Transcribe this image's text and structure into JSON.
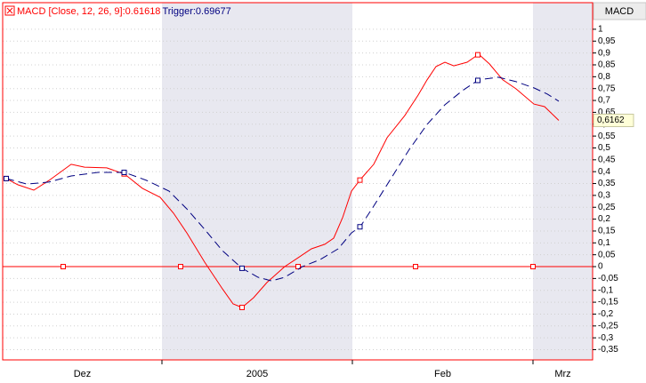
{
  "chart_data": {
    "type": "line",
    "axis_title": "MACD",
    "series": [
      {
        "name": "MACD [Close, 12, 26, 9]:0.61618",
        "color": "#ff0000",
        "dash": false,
        "x": [
          0.4,
          1.7,
          3.5,
          5.2,
          7.7,
          9.2,
          11.7,
          13.7,
          15.7,
          17.7,
          19.2,
          20.7,
          22.7,
          24.7,
          25.9,
          26.9,
          28.2,
          29.7,
          31.7,
          33.2,
          34.7,
          36.2,
          37.2,
          38.2,
          39.2,
          40.2,
          41.7,
          43.2,
          45.2,
          46.7,
          47.7,
          48.7,
          49.7,
          50.7,
          52.2,
          53.5,
          54.7,
          56.2,
          57.7,
          59.7,
          60.9,
          62.5
        ],
        "values": [
          0.371,
          0.345,
          0.322,
          0.363,
          0.431,
          0.419,
          0.416,
          0.39,
          0.33,
          0.292,
          0.225,
          0.142,
          0.019,
          -0.094,
          -0.157,
          -0.172,
          -0.131,
          -0.067,
          0,
          0.037,
          0.075,
          0.094,
          0.12,
          0.206,
          0.318,
          0.367,
          0.431,
          0.543,
          0.637,
          0.723,
          0.787,
          0.843,
          0.861,
          0.846,
          0.861,
          0.895,
          0.854,
          0.787,
          0.749,
          0.685,
          0.674,
          0.616
        ]
      },
      {
        "name": "Trigger:0.69677",
        "color": "#000080",
        "dash": true,
        "x": [
          0.4,
          2.7,
          5.2,
          7.7,
          10.7,
          13.7,
          16.2,
          18.7,
          20.7,
          22.7,
          24.7,
          26.9,
          28.7,
          30.2,
          31.7,
          33.7,
          35.7,
          37.7,
          39.2,
          40.2,
          41.7,
          43.7,
          45.7,
          47.7,
          49.7,
          51.7,
          53.5,
          55.7,
          57.7,
          59.7,
          61.2,
          62.5
        ],
        "values": [
          0.371,
          0.348,
          0.356,
          0.382,
          0.397,
          0.397,
          0.363,
          0.318,
          0.243,
          0.157,
          0.067,
          -0.007,
          -0.045,
          -0.06,
          -0.045,
          0,
          0.03,
          0.075,
          0.142,
          0.169,
          0.255,
          0.375,
          0.494,
          0.599,
          0.682,
          0.742,
          0.787,
          0.798,
          0.779,
          0.753,
          0.727,
          0.697
        ]
      }
    ],
    "last_value_label": "0,6162",
    "xlim": [
      0,
      66.3
    ],
    "xticks": [
      17.9,
      39.3,
      59.6
    ],
    "periods": [
      "Dez",
      "2005",
      "Feb",
      "Mrz"
    ],
    "shaded": [
      false,
      true,
      false,
      true
    ],
    "ylim": [
      -0.393,
      1.112
    ],
    "yticks": [
      1,
      {
        "value": 0.95,
        "label": "0,95"
      },
      {
        "value": 0.9,
        "label": "0,9"
      },
      {
        "value": 0.85,
        "label": "0,85"
      },
      {
        "value": 0.8,
        "label": "0,8"
      },
      {
        "value": 0.75,
        "label": "0,75"
      },
      {
        "value": 0.7,
        "label": "0,7"
      },
      {
        "value": 0.65,
        "label": "0,65"
      },
      {
        "value": 0.6,
        "label": "0,6"
      },
      {
        "value": 0.55,
        "label": "0,55"
      },
      {
        "value": 0.5,
        "label": "0,5"
      },
      {
        "value": 0.45,
        "label": "0,45"
      },
      {
        "value": 0.4,
        "label": "0,4"
      },
      {
        "value": 0.35,
        "label": "0,35"
      },
      {
        "value": 0.3,
        "label": "0,3"
      },
      {
        "value": 0.25,
        "label": "0,25"
      },
      {
        "value": 0.2,
        "label": "0,2"
      },
      {
        "value": 0.15,
        "label": "0,15"
      },
      {
        "value": 0.1,
        "label": "0,1"
      },
      {
        "value": 0.05,
        "label": "0,05"
      },
      0,
      {
        "value": -0.05,
        "label": "-0,05"
      },
      {
        "value": -0.1,
        "label": "-0,1"
      },
      {
        "value": -0.15,
        "label": "-0,15"
      },
      {
        "value": -0.2,
        "label": "-0,2"
      },
      {
        "value": -0.25,
        "label": "-0,25"
      },
      {
        "value": -0.3,
        "label": "-0,3"
      },
      {
        "value": -0.35,
        "label": "-0,35"
      }
    ],
    "grid": true,
    "zero_line": true
  }
}
